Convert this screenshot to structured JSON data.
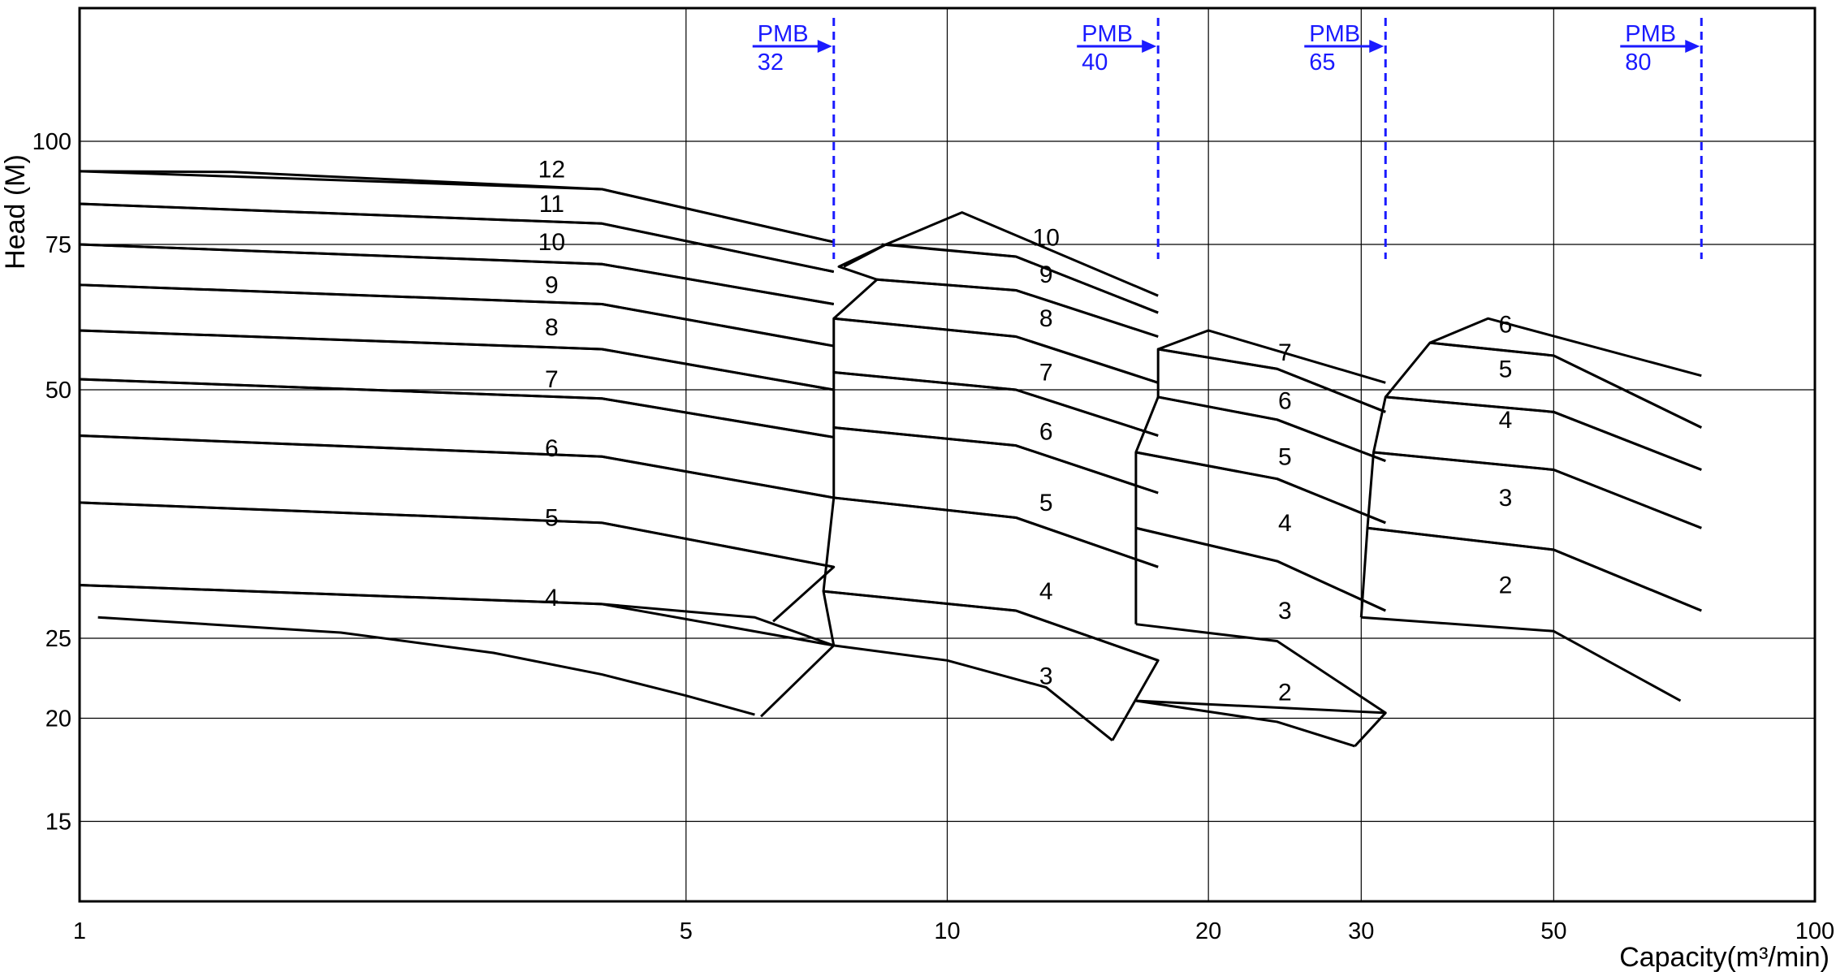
{
  "chart_data": {
    "type": "line",
    "title": "",
    "xlabel": "Capacity(m³/min)",
    "ylabel": "Head (M)",
    "x_scale": "log",
    "y_scale": "log",
    "xlim": [
      1,
      100
    ],
    "ylim": [
      12,
      145
    ],
    "x_ticks": [
      1,
      5,
      10,
      20,
      30,
      50,
      100
    ],
    "y_ticks": [
      15,
      20,
      25,
      50,
      75,
      100
    ],
    "grid": true,
    "accent_color": "#1a1aff",
    "limits": [
      {
        "label_top": "PMB",
        "label_bottom": "32",
        "x": 7.4
      },
      {
        "label_top": "PMB",
        "label_bottom": "40",
        "x": 17.5
      },
      {
        "label_top": "PMB",
        "label_bottom": "65",
        "x": 32
      },
      {
        "label_top": "PMB",
        "label_bottom": "80",
        "x": 74
      }
    ],
    "series": [
      {
        "group": "32",
        "stage": "4",
        "label_x": 3.5,
        "label_y": 28,
        "curve": [
          [
            1.05,
            26.5
          ],
          [
            2,
            25.4
          ],
          [
            3,
            24
          ],
          [
            4,
            22.6
          ],
          [
            5,
            21.3
          ],
          [
            6,
            20.2
          ]
        ],
        "band": [
          [
            1,
            26.5
          ],
          [
            1,
            29
          ],
          [
            4,
            27.5
          ],
          [
            6,
            26.5
          ],
          [
            7.4,
            24.5
          ],
          [
            6.1,
            20.1
          ]
        ]
      },
      {
        "group": "32",
        "stage": "5",
        "label_x": 3.5,
        "label_y": 35,
        "curve": [
          [
            1,
            29
          ],
          [
            4,
            27.5
          ],
          [
            7.4,
            24.5
          ]
        ],
        "band": [
          [
            1,
            29
          ],
          [
            1,
            36.5
          ],
          [
            4,
            34.5
          ],
          [
            7.4,
            30.5
          ],
          [
            6.3,
            26.2
          ]
        ]
      },
      {
        "group": "32",
        "stage": "6",
        "label_x": 3.5,
        "label_y": 42.5,
        "curve": [
          [
            1,
            36.5
          ],
          [
            4,
            34.5
          ],
          [
            7.4,
            30.5
          ]
        ],
        "band": [
          [
            1,
            36.5
          ],
          [
            1,
            44
          ],
          [
            4,
            41.5
          ],
          [
            7.4,
            37
          ]
        ]
      },
      {
        "group": "32",
        "stage": "7",
        "label_x": 3.5,
        "label_y": 51.5,
        "curve": [
          [
            1,
            44
          ],
          [
            4,
            41.5
          ],
          [
            7.4,
            37
          ]
        ],
        "band": [
          [
            1,
            44
          ],
          [
            1,
            51.5
          ],
          [
            4,
            48.8
          ],
          [
            7.4,
            43.8
          ]
        ]
      },
      {
        "group": "32",
        "stage": "8",
        "label_x": 3.5,
        "label_y": 59.5,
        "curve": [
          [
            1,
            51.5
          ],
          [
            4,
            48.8
          ],
          [
            7.4,
            43.8
          ]
        ],
        "band": [
          [
            1,
            51.5
          ],
          [
            1,
            59
          ],
          [
            4,
            56
          ],
          [
            7.4,
            50
          ]
        ]
      },
      {
        "group": "32",
        "stage": "9",
        "label_x": 3.5,
        "label_y": 67,
        "curve": [
          [
            1,
            59
          ],
          [
            4,
            56
          ],
          [
            7.4,
            50
          ]
        ],
        "band": [
          [
            1,
            59
          ],
          [
            1,
            67
          ],
          [
            4,
            63.5
          ],
          [
            7.4,
            56.5
          ]
        ]
      },
      {
        "group": "32",
        "stage": "10",
        "label_x": 3.5,
        "label_y": 75.5,
        "curve": [
          [
            1,
            67
          ],
          [
            4,
            63.5
          ],
          [
            7.4,
            56.5
          ]
        ],
        "band": [
          [
            1,
            67
          ],
          [
            1,
            75
          ],
          [
            4,
            71
          ],
          [
            7.4,
            63.5
          ]
        ]
      },
      {
        "group": "32",
        "stage": "11",
        "label_x": 3.5,
        "label_y": 84,
        "curve": [
          [
            1,
            75
          ],
          [
            4,
            71
          ],
          [
            7.4,
            63.5
          ]
        ],
        "band": [
          [
            1,
            75
          ],
          [
            1,
            84
          ],
          [
            4,
            79.5
          ],
          [
            7.4,
            69.5
          ]
        ]
      },
      {
        "group": "32",
        "stage": "12",
        "label_x": 3.5,
        "label_y": 92.5,
        "curve": [
          [
            1,
            84
          ],
          [
            4,
            79.5
          ],
          [
            7.4,
            69.5
          ]
        ],
        "band": [
          [
            1,
            84
          ],
          [
            1,
            92
          ],
          [
            4,
            87.5
          ],
          [
            7.4,
            75.5
          ]
        ]
      },
      {
        "group": "32",
        "stage": "12 top",
        "label_x": null,
        "label_y": null,
        "curve": [
          [
            1,
            92
          ],
          [
            1.5,
            91.8
          ],
          [
            4,
            87.5
          ],
          [
            7.4,
            75.5
          ]
        ],
        "band": []
      },
      {
        "group": "40",
        "stage": "3",
        "label_x": 13,
        "label_y": 22.5,
        "curve": [
          [
            7.4,
            24.5
          ],
          [
            10,
            23.5
          ],
          [
            13,
            21.8
          ],
          [
            15.5,
            18.8
          ]
        ],
        "band": [
          [
            7.4,
            24.5
          ],
          [
            7.2,
            28.5
          ],
          [
            12,
            27
          ],
          [
            17.5,
            23.5
          ],
          [
            15.5,
            18.8
          ]
        ]
      },
      {
        "group": "40",
        "stage": "4",
        "label_x": 13,
        "label_y": 28.5,
        "curve": [
          [
            7.2,
            28.5
          ],
          [
            12,
            27
          ],
          [
            17.5,
            23.5
          ]
        ],
        "band": [
          [
            7.2,
            28.5
          ],
          [
            7.4,
            37
          ],
          [
            12,
            35
          ],
          [
            17.5,
            30.5
          ]
        ]
      },
      {
        "group": "40",
        "stage": "5",
        "label_x": 13,
        "label_y": 36.5,
        "curve": [
          [
            7.4,
            37
          ],
          [
            12,
            35
          ],
          [
            17.5,
            30.5
          ]
        ],
        "band": [
          [
            7.4,
            37
          ],
          [
            7.4,
            45
          ],
          [
            12,
            42.8
          ],
          [
            17.5,
            37.5
          ]
        ]
      },
      {
        "group": "40",
        "stage": "6",
        "label_x": 13,
        "label_y": 44.5,
        "curve": [
          [
            7.4,
            45
          ],
          [
            12,
            42.8
          ],
          [
            17.5,
            37.5
          ]
        ],
        "band": [
          [
            7.4,
            45
          ],
          [
            7.4,
            52.5
          ],
          [
            12,
            50
          ],
          [
            17.5,
            44
          ]
        ]
      },
      {
        "group": "40",
        "stage": "7",
        "label_x": 13,
        "label_y": 52.5,
        "curve": [
          [
            7.4,
            52.5
          ],
          [
            12,
            50
          ],
          [
            17.5,
            44
          ]
        ],
        "band": [
          [
            7.4,
            52.5
          ],
          [
            7.4,
            61
          ],
          [
            12,
            58
          ],
          [
            17.5,
            51
          ]
        ]
      },
      {
        "group": "40",
        "stage": "8",
        "label_x": 13,
        "label_y": 61,
        "curve": [
          [
            7.4,
            61
          ],
          [
            12,
            58
          ],
          [
            17.5,
            51
          ]
        ],
        "band": [
          [
            7.4,
            61
          ],
          [
            8.3,
            68
          ],
          [
            12,
            66
          ],
          [
            17.5,
            58
          ]
        ]
      },
      {
        "group": "40",
        "stage": "9",
        "label_x": 13,
        "label_y": 69,
        "curve": [
          [
            8.3,
            68
          ],
          [
            12,
            66
          ],
          [
            17.5,
            58
          ]
        ],
        "band": [
          [
            8.3,
            68
          ],
          [
            7.5,
            70.5
          ],
          [
            8.5,
            75
          ],
          [
            12,
            72.5
          ],
          [
            17.5,
            62
          ]
        ]
      },
      {
        "group": "40",
        "stage": "10",
        "label_x": 13,
        "label_y": 76.5,
        "curve": [
          [
            8.4,
            75
          ],
          [
            12,
            72.5
          ],
          [
            17.5,
            62
          ]
        ],
        "band": [
          [
            7.6,
            70.5
          ],
          [
            8.5,
            75
          ],
          [
            10.4,
            82
          ],
          [
            17.5,
            65
          ]
        ]
      },
      {
        "group": "65",
        "stage": "2",
        "label_x": 24.5,
        "label_y": 21.5,
        "curve": [
          [
            16.5,
            21
          ],
          [
            24,
            19.8
          ],
          [
            29.5,
            18.5
          ]
        ],
        "band": [
          [
            16.5,
            21
          ],
          [
            32,
            20.3
          ],
          [
            29.5,
            18.5
          ]
        ]
      },
      {
        "group": "65",
        "stage": "3",
        "label_x": 24.5,
        "label_y": 27,
        "curve": [
          [
            16.5,
            26
          ],
          [
            24,
            24.8
          ],
          [
            32,
            20.3
          ]
        ],
        "band": [
          [
            16.5,
            26
          ],
          [
            16.5,
            34
          ],
          [
            24,
            31
          ],
          [
            32,
            27
          ]
        ]
      },
      {
        "group": "65",
        "stage": "4",
        "label_x": 24.5,
        "label_y": 34.5,
        "curve": [
          [
            16.5,
            34
          ],
          [
            24,
            31
          ],
          [
            32,
            27
          ]
        ],
        "band": [
          [
            16.5,
            34
          ],
          [
            16.5,
            42
          ],
          [
            24,
            39
          ],
          [
            32,
            34.5
          ]
        ]
      },
      {
        "group": "65",
        "stage": "5",
        "label_x": 24.5,
        "label_y": 41.5,
        "curve": [
          [
            16.5,
            42
          ],
          [
            24,
            39
          ],
          [
            32,
            34.5
          ]
        ],
        "band": [
          [
            16.5,
            42
          ],
          [
            17.5,
            49
          ],
          [
            24,
            46
          ],
          [
            32,
            41
          ]
        ]
      },
      {
        "group": "65",
        "stage": "6",
        "label_x": 24.5,
        "label_y": 48.5,
        "curve": [
          [
            17.5,
            49
          ],
          [
            24,
            46
          ],
          [
            32,
            41
          ]
        ],
        "band": [
          [
            17.5,
            49
          ],
          [
            17.5,
            56
          ],
          [
            24,
            53
          ],
          [
            32,
            47
          ]
        ]
      },
      {
        "group": "65",
        "stage": "7",
        "label_x": 24.5,
        "label_y": 55.5,
        "curve": [
          [
            17.5,
            56
          ],
          [
            24,
            53
          ],
          [
            32,
            47
          ]
        ],
        "band": [
          [
            17.5,
            56
          ],
          [
            20,
            59
          ],
          [
            32,
            51
          ]
        ]
      },
      {
        "group": "80",
        "stage": "2",
        "label_x": 44,
        "label_y": 29,
        "curve": [
          [
            30,
            26.5
          ],
          [
            50,
            25.5
          ],
          [
            70,
            21
          ]
        ],
        "band": [
          [
            30,
            26.5
          ],
          [
            30.5,
            34
          ],
          [
            50,
            32
          ],
          [
            74,
            27
          ]
        ]
      },
      {
        "group": "80",
        "stage": "3",
        "label_x": 44,
        "label_y": 37,
        "curve": [
          [
            30.5,
            34
          ],
          [
            50,
            32
          ],
          [
            74,
            27
          ]
        ],
        "band": [
          [
            30.5,
            34
          ],
          [
            31,
            42
          ],
          [
            50,
            40
          ],
          [
            74,
            34
          ]
        ]
      },
      {
        "group": "80",
        "stage": "4",
        "label_x": 44,
        "label_y": 46,
        "curve": [
          [
            31,
            42
          ],
          [
            50,
            40
          ],
          [
            74,
            34
          ]
        ],
        "band": [
          [
            31,
            42
          ],
          [
            32,
            49
          ],
          [
            50,
            47
          ],
          [
            74,
            40
          ]
        ]
      },
      {
        "group": "80",
        "stage": "5",
        "label_x": 44,
        "label_y": 53,
        "curve": [
          [
            32,
            49
          ],
          [
            50,
            47
          ],
          [
            74,
            40
          ]
        ],
        "band": [
          [
            32,
            49
          ],
          [
            36,
            57
          ],
          [
            50,
            55
          ],
          [
            74,
            45
          ]
        ]
      },
      {
        "group": "80",
        "stage": "6",
        "label_x": 44,
        "label_y": 60,
        "curve": [
          [
            36,
            57
          ],
          [
            50,
            55
          ],
          [
            74,
            45
          ]
        ],
        "band": [
          [
            36,
            57
          ],
          [
            42,
            61
          ],
          [
            74,
            52
          ]
        ]
      }
    ],
    "annotations": [
      "PMB 32",
      "PMB 40",
      "PMB 65",
      "PMB 80"
    ]
  }
}
